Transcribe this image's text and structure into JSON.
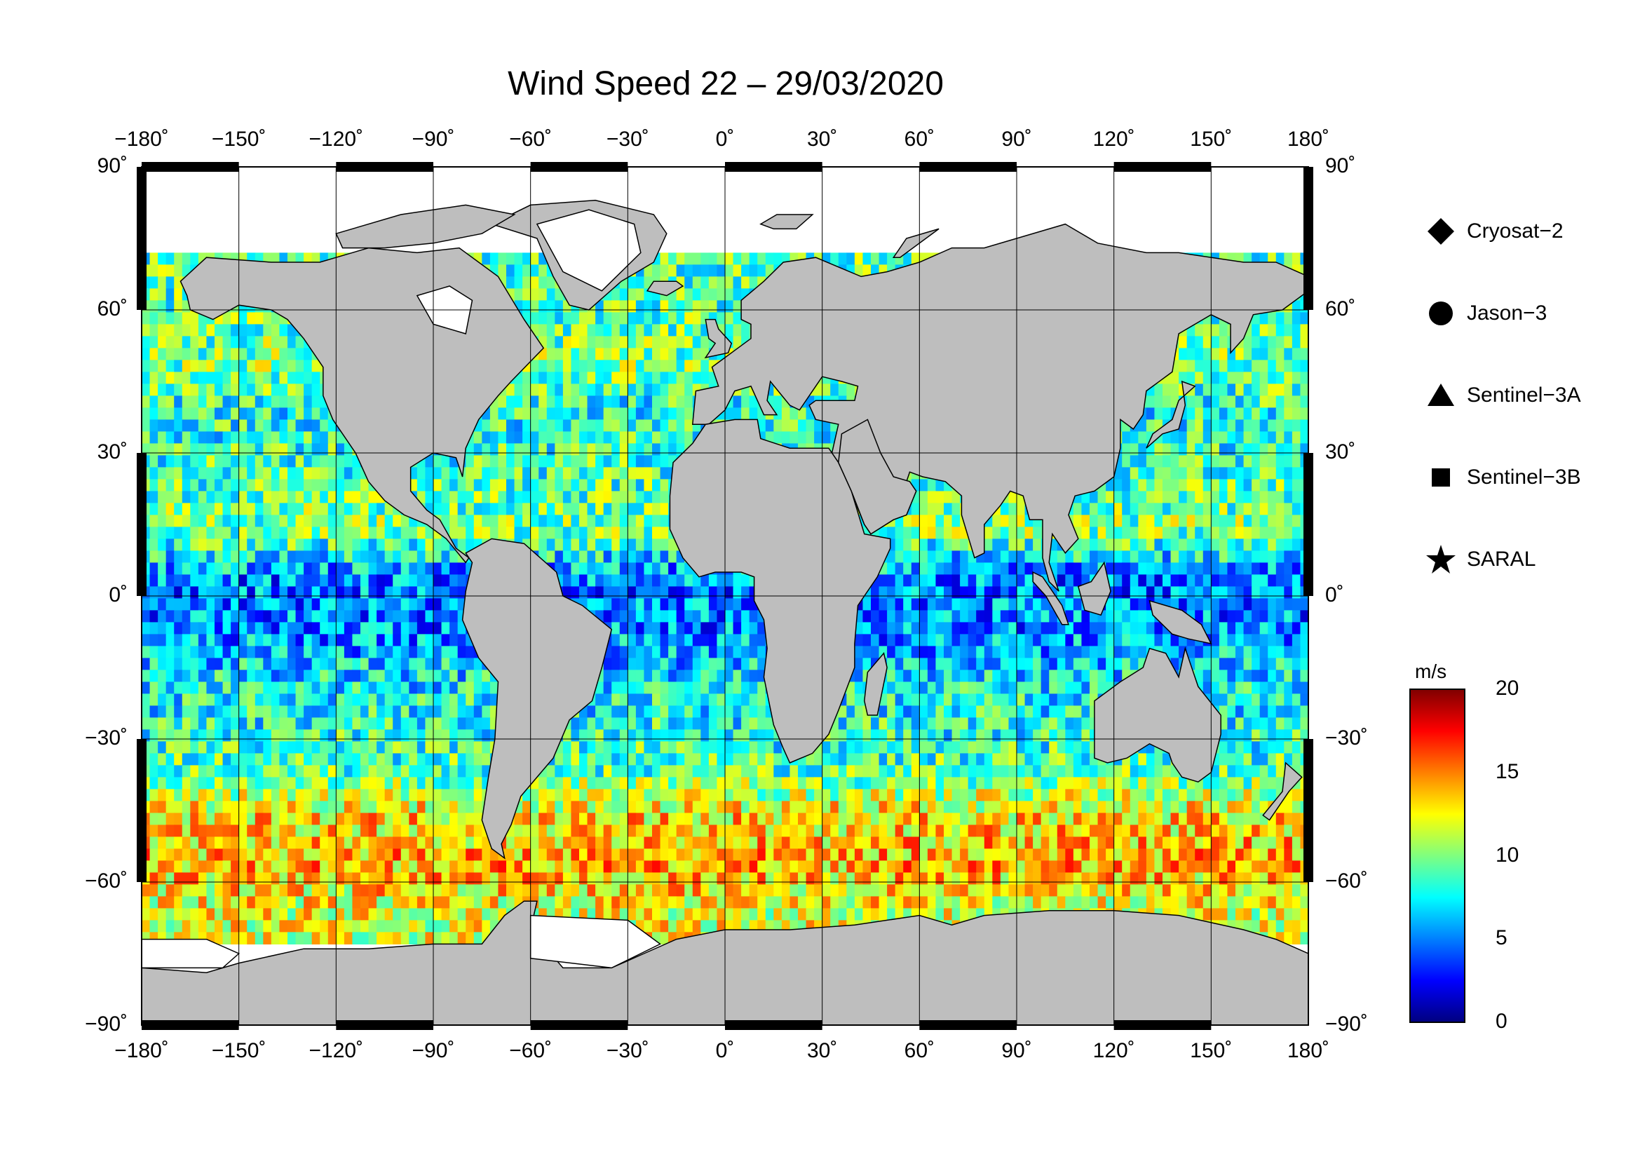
{
  "title": "Wind Speed 22 – 29/03/2020",
  "map": {
    "lon_ticks": [
      {
        "value": -180,
        "label": "−180˚"
      },
      {
        "value": -150,
        "label": "−150˚"
      },
      {
        "value": -120,
        "label": "−120˚"
      },
      {
        "value": -90,
        "label": "−90˚"
      },
      {
        "value": -60,
        "label": "−60˚"
      },
      {
        "value": -30,
        "label": "−30˚"
      },
      {
        "value": 0,
        "label": "0˚"
      },
      {
        "value": 30,
        "label": "30˚"
      },
      {
        "value": 60,
        "label": "60˚"
      },
      {
        "value": 90,
        "label": "90˚"
      },
      {
        "value": 120,
        "label": "120˚"
      },
      {
        "value": 150,
        "label": "150˚"
      },
      {
        "value": 180,
        "label": "180˚"
      }
    ],
    "lat_ticks": [
      {
        "value": 90,
        "label": "90˚"
      },
      {
        "value": 60,
        "label": "60˚"
      },
      {
        "value": 30,
        "label": "30˚"
      },
      {
        "value": 0,
        "label": "0˚"
      },
      {
        "value": -30,
        "label": "−30˚"
      },
      {
        "value": -60,
        "label": "−60˚"
      },
      {
        "value": -90,
        "label": "−90˚"
      }
    ],
    "land_color": "#bebebe",
    "ice_color": "#ffffff",
    "grid": true
  },
  "legend": [
    {
      "symbol": "diamond",
      "label": "Cryosat−2"
    },
    {
      "symbol": "circle",
      "label": "Jason−3"
    },
    {
      "symbol": "triangle",
      "label": "Sentinel−3A"
    },
    {
      "symbol": "square",
      "label": "Sentinel−3B"
    },
    {
      "symbol": "star",
      "label": "SARAL"
    }
  ],
  "colorbar": {
    "unit": "m/s",
    "min": 0,
    "max": 20,
    "ticks": [
      {
        "value": 20,
        "label": "20"
      },
      {
        "value": 15,
        "label": "15"
      },
      {
        "value": 10,
        "label": "10"
      },
      {
        "value": 5,
        "label": "5"
      },
      {
        "value": 0,
        "label": "0"
      }
    ],
    "colormap": [
      "#00007f",
      "#0000ff",
      "#007fff",
      "#00ffff",
      "#7fff7f",
      "#ffff00",
      "#ff7f00",
      "#ff0000",
      "#7f0000"
    ]
  },
  "wind_bands": [
    {
      "lat": 65,
      "speed": 9
    },
    {
      "lat": 50,
      "speed": 10
    },
    {
      "lat": 40,
      "speed": 8
    },
    {
      "lat": 25,
      "speed": 9
    },
    {
      "lat": 15,
      "speed": 10
    },
    {
      "lat": 5,
      "speed": 5
    },
    {
      "lat": -5,
      "speed": 5
    },
    {
      "lat": -15,
      "speed": 7
    },
    {
      "lat": -25,
      "speed": 8
    },
    {
      "lat": -35,
      "speed": 9
    },
    {
      "lat": -45,
      "speed": 13
    },
    {
      "lat": -55,
      "speed": 14
    },
    {
      "lat": -65,
      "speed": 12
    }
  ]
}
